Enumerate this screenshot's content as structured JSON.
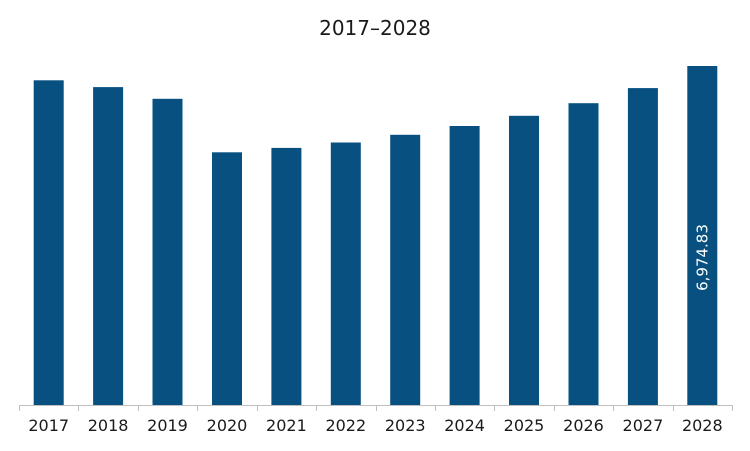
{
  "chart_data": {
    "type": "bar",
    "title": "2017–2028",
    "xlabel": "",
    "ylabel": "",
    "categories": [
      "2017",
      "2018",
      "2019",
      "2020",
      "2021",
      "2022",
      "2023",
      "2024",
      "2025",
      "2026",
      "2027",
      "2028"
    ],
    "values": [
      6680,
      6540,
      6300,
      5200,
      5290,
      5400,
      5560,
      5740,
      5950,
      6210,
      6520,
      6974.83
    ],
    "data_labels": [
      "",
      "",
      "",
      "",
      "",
      "",
      "",
      "",
      "",
      "",
      "",
      "6,974.83"
    ],
    "ylim": [
      0,
      7000
    ],
    "grid": false,
    "legend": "none",
    "bar_color": "#07507f",
    "axis_color": "#bfbfbf"
  }
}
